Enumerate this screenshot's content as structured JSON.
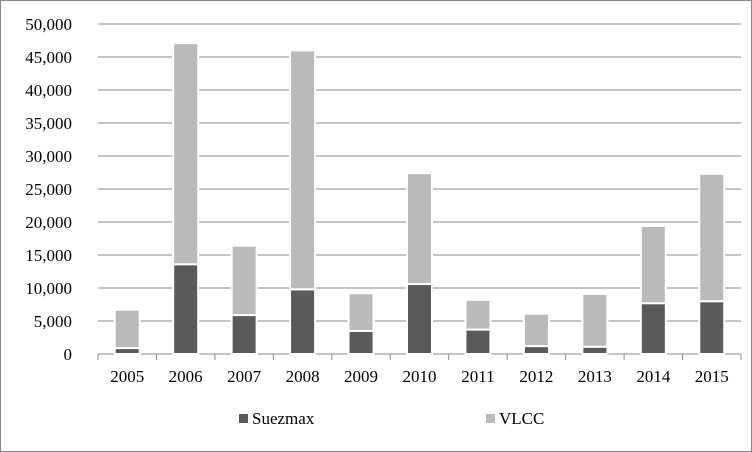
{
  "chart_data": {
    "type": "bar",
    "stacked": true,
    "title": "",
    "xlabel": "",
    "ylabel": "",
    "ylim": [
      0,
      50000
    ],
    "yticks": [
      0,
      5000,
      10000,
      15000,
      20000,
      25000,
      30000,
      35000,
      40000,
      45000,
      50000
    ],
    "ytick_labels": [
      "0",
      "5,000",
      "10,000",
      "15,000",
      "20,000",
      "25,000",
      "30,000",
      "35,000",
      "40,000",
      "45,000",
      "50,000"
    ],
    "grid": true,
    "legend_position": "bottom",
    "categories": [
      "2005",
      "2006",
      "2007",
      "2008",
      "2009",
      "2010",
      "2011",
      "2012",
      "2013",
      "2014",
      "2015"
    ],
    "series": [
      {
        "name": "Suezmax",
        "color": "#5a5a5a",
        "values": [
          900,
          13600,
          5900,
          9800,
          3500,
          10600,
          3700,
          1200,
          1100,
          7700,
          8000
        ]
      },
      {
        "name": "VLCC",
        "color": "#bababa",
        "values": [
          5800,
          33500,
          10500,
          36200,
          5700,
          16800,
          4500,
          4900,
          8000,
          11700,
          19300
        ]
      }
    ]
  }
}
